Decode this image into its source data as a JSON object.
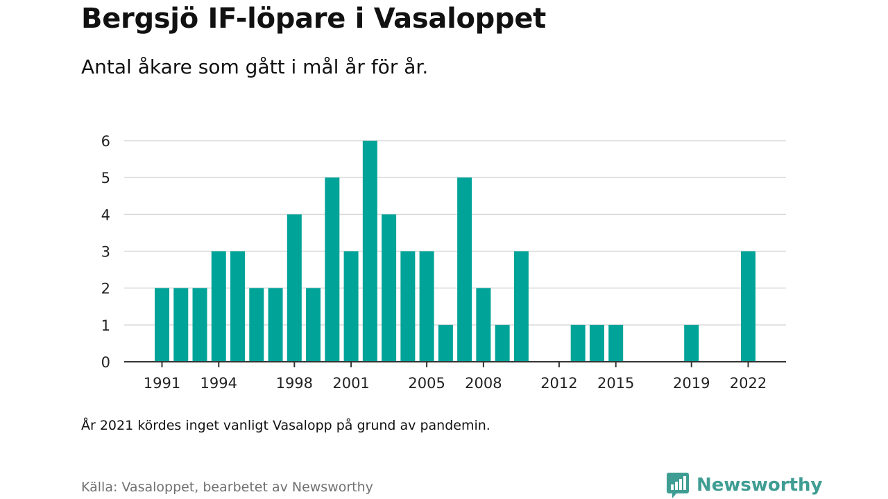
{
  "title": "Bergsjö IF-löpare i Vasaloppet",
  "subtitle": "Antal åkare som gått i mål år för år.",
  "note": "År 2021 kördes inget vanligt Vasalopp på grund av pandemin.",
  "source": "Källa: Vasaloppet, bearbetet av Newsworthy",
  "brand": {
    "name": "Newsworthy",
    "icon": "newsworthy-logo-icon",
    "color": "#3f9d93"
  },
  "chart_data": {
    "type": "bar",
    "title": "Bergsjö IF-löpare i Vasaloppet",
    "subtitle": "Antal åkare som gått i mål år för år.",
    "xlabel": "",
    "ylabel": "",
    "ylim": [
      0,
      6
    ],
    "y_ticks": [
      0,
      1,
      2,
      3,
      4,
      5,
      6
    ],
    "x_ticks": [
      1991,
      1994,
      1998,
      2001,
      2005,
      2008,
      2012,
      2015,
      2019,
      2022
    ],
    "xlim": [
      1989,
      2024
    ],
    "grid": true,
    "bar_color": "#00a398",
    "x": [
      1991,
      1992,
      1993,
      1994,
      1995,
      1996,
      1997,
      1998,
      1999,
      2000,
      2001,
      2002,
      2003,
      2004,
      2005,
      2006,
      2007,
      2008,
      2009,
      2010,
      2013,
      2014,
      2015,
      2019,
      2022
    ],
    "values": [
      2,
      2,
      2,
      3,
      3,
      2,
      2,
      4,
      2,
      5,
      3,
      6,
      4,
      3,
      3,
      1,
      5,
      2,
      1,
      3,
      1,
      1,
      1,
      1,
      3
    ]
  }
}
